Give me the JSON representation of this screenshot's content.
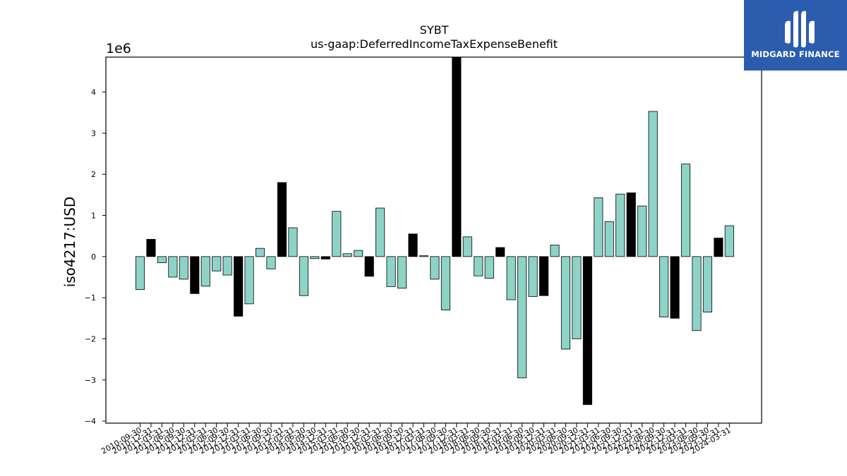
{
  "chart_data": {
    "type": "bar",
    "title": "SYBT",
    "subtitle": "us-gaap:DeferredIncomeTaxExpenseBenefit",
    "ylabel": "iso4217:USD",
    "xlabel": "",
    "offset_text": "1e6",
    "ylim": [
      -4.05,
      4.85
    ],
    "yticks": [
      -4,
      -3,
      -2,
      -1,
      0,
      1,
      2,
      3,
      4
    ],
    "ytick_labels": [
      "−4",
      "−3",
      "−2",
      "−1",
      "0",
      "1",
      "2",
      "3",
      "4"
    ],
    "grid": false,
    "legend": "none",
    "colors": {
      "teal": "#8dd3c7",
      "black": "#000000"
    },
    "categories": [
      "2010-09-30",
      "2010-12-31",
      "2011-03-31",
      "2011-06-30",
      "2011-09-30",
      "2011-12-31",
      "2012-03-31",
      "2012-06-30",
      "2012-09-30",
      "2012-12-31",
      "2013-03-31",
      "2013-06-30",
      "2013-09-30",
      "2013-12-31",
      "2014-03-31",
      "2014-06-30",
      "2014-09-30",
      "2014-12-31",
      "2015-03-31",
      "2015-06-30",
      "2015-09-30",
      "2015-12-31",
      "2016-03-31",
      "2016-06-30",
      "2016-09-30",
      "2016-12-31",
      "2017-03-31",
      "2017-06-30",
      "2017-09-30",
      "2017-12-31",
      "2018-03-31",
      "2018-06-30",
      "2018-09-30",
      "2018-12-31",
      "2019-03-31",
      "2019-06-30",
      "2019-09-30",
      "2019-12-31",
      "2020-03-31",
      "2020-06-30",
      "2020-09-30",
      "2020-12-31",
      "2021-03-31",
      "2021-06-30",
      "2021-09-30",
      "2021-12-31",
      "2022-03-31",
      "2022-06-30",
      "2022-09-30",
      "2022-12-31",
      "2023-03-31",
      "2023-06-30",
      "2023-09-30",
      "2023-12-31",
      "2024-03-31"
    ],
    "values": [
      -0.8,
      0.42,
      -0.15,
      -0.5,
      -0.55,
      -0.9,
      -0.72,
      -0.35,
      -0.45,
      -1.45,
      -1.15,
      0.2,
      -0.3,
      1.8,
      0.7,
      -0.95,
      -0.05,
      -0.06,
      1.1,
      0.07,
      0.15,
      -0.48,
      1.18,
      -0.73,
      -0.77,
      0.55,
      0.02,
      -0.55,
      -1.3,
      4.95,
      0.48,
      -0.47,
      -0.53,
      0.22,
      -1.05,
      -2.95,
      -0.97,
      -0.95,
      0.28,
      -2.25,
      -2.0,
      -3.6,
      1.43,
      0.85,
      1.52,
      1.55,
      1.23,
      3.53,
      -1.47,
      -1.5,
      2.25,
      -1.8,
      -1.35,
      0.45,
      0.75
    ],
    "bar_colors": [
      "teal",
      "black",
      "teal",
      "teal",
      "teal",
      "black",
      "teal",
      "teal",
      "teal",
      "black",
      "teal",
      "teal",
      "teal",
      "black",
      "teal",
      "teal",
      "teal",
      "black",
      "teal",
      "teal",
      "teal",
      "black",
      "teal",
      "teal",
      "teal",
      "black",
      "teal",
      "teal",
      "teal",
      "black",
      "teal",
      "teal",
      "teal",
      "black",
      "teal",
      "teal",
      "teal",
      "black",
      "teal",
      "teal",
      "teal",
      "black",
      "teal",
      "teal",
      "teal",
      "black",
      "teal",
      "teal",
      "teal",
      "black",
      "teal",
      "teal",
      "teal",
      "black",
      "teal"
    ]
  },
  "logo": {
    "text": "MIDGARD FINANCE"
  }
}
